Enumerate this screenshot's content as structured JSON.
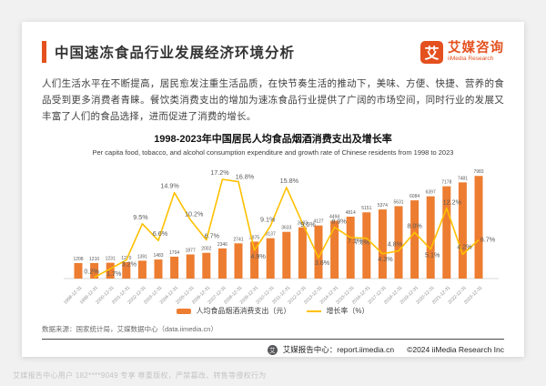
{
  "colors": {
    "brand": "#e4511f",
    "bar": "#ED7D31",
    "line": "#FFC000",
    "axis": "#d9d9d9",
    "label": "#595959",
    "tick": "#8c8c8c"
  },
  "header": {
    "title": "中国速冻食品行业发展经济环境分析"
  },
  "logo": {
    "glyph": "艾",
    "name_cn": "艾媒咨询",
    "name_en": "iiMedia Research"
  },
  "intro": "人们生活水平在不断提高，居民愈发注重生活品质，在快节奏生活的推动下，美味、方便、快捷、营养的食品受到更多消费者青睐。餐饮类消费支出的增加为速冻食品行业提供了广阔的市场空间，同时行业的发展又丰富了人们的食品选择，进而促进了消费的增长。",
  "chart_data": {
    "type": "bar+line",
    "title": "1998-2023年中国居民人均食品烟酒消费支出及增长率",
    "subtitle": "Per capita food, tobacco, and alcohol consumption expenditure and growth rate of Chinese residents from 1998 to 2023",
    "categories": [
      "1998-12-31",
      "1999-12-31",
      "2000-12-31",
      "2001-12-31",
      "2002-12-31",
      "2003-12-31",
      "2004-12-31",
      "2005-12-31",
      "2006-12-31",
      "2007-12-31",
      "2008-12-31",
      "2009-12-31",
      "2010-12-31",
      "2011-12-31",
      "2012-12-31",
      "2013-12-31",
      "2014-12-31",
      "2015-12-31",
      "2016-12-31",
      "2017-12-31",
      "2018-12-31",
      "2019-12-31",
      "2020-12-31",
      "2021-12-31",
      "2022-12-31",
      "2023-12-31"
    ],
    "series": [
      {
        "name": "人均食品烟酒消费支出（元）",
        "type": "bar",
        "color": "#ED7D31",
        "values": [
          1208,
          1210,
          1231,
          1270,
          1391,
          1483,
          1704,
          1877,
          2002,
          2346,
          2741,
          2875,
          3137,
          3633,
          3983,
          4127,
          4494,
          4814,
          5151,
          5374,
          5631,
          6084,
          6397,
          7178,
          7481,
          7983
        ]
      },
      {
        "name": "增长率（%）",
        "type": "line",
        "color": "#FFC000",
        "values": [
          null,
          0.2,
          1.7,
          3.2,
          9.5,
          6.6,
          14.9,
          10.2,
          6.7,
          17.2,
          16.8,
          4.9,
          9.1,
          15.8,
          9.6,
          3.6,
          8.9,
          7.1,
          7.0,
          4.3,
          4.8,
          8.0,
          5.1,
          12.2,
          4.2,
          6.7
        ]
      }
    ],
    "legend_position": "bottom",
    "grid": false,
    "ylim_bar": [
      0,
      8000
    ],
    "ylim_line": [
      0,
      18
    ]
  },
  "source": "数据来源：国家统计局，艾媒数据中心（data.iimedia.cn）",
  "footer": {
    "report_center": "艾媒报告中心：report.iimedia.cn",
    "copyright": "©2024  iiMedia Research Inc"
  },
  "watermark": "艾媒报告中心用户 182****9049 专享 尊重版权，严禁篡改、转售等侵权行为"
}
